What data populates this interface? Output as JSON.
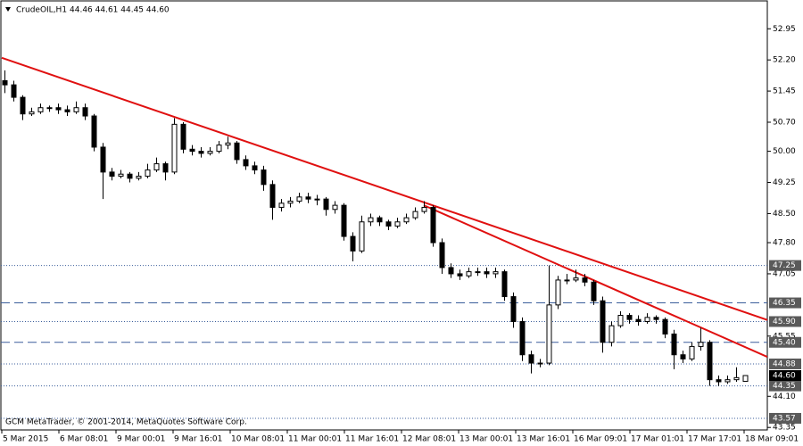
{
  "chart_data": {
    "type": "candlestick",
    "header": {
      "symbol": "CrudeOIL,H1",
      "ohlc": "44.46 44.61 44.45 44.60"
    },
    "footer": "GCM MetaTrader, © 2001-2014, MetaQuotes Software Corp.",
    "ylim": [
      43.29,
      53.6
    ],
    "yticks": [
      52.95,
      {
        "value": 52.2,
        "label": "52.20"
      },
      51.45,
      {
        "value": 50.7,
        "label": "50.70"
      },
      {
        "value": 50,
        "label": "50.00"
      },
      49.25,
      {
        "value": 48.5,
        "label": "48.50"
      },
      {
        "value": 47.8,
        "label": "47.80"
      },
      47.05,
      45.55,
      {
        "value": 44.1,
        "label": "44.10"
      },
      43.35
    ],
    "xlabels": [
      "5 Mar 2015",
      "6 Mar 08:01",
      "9 Mar 00:01",
      "9 Mar 16:01",
      "10 Mar 08:01",
      "11 Mar 00:01",
      "11 Mar 16:01",
      "12 Mar 08:01",
      "13 Mar 00:01",
      "13 Mar 16:01",
      "16 Mar 09:01",
      "17 Mar 01:01",
      "17 Mar 17:01",
      "18 Mar 09:01"
    ],
    "levels": [
      {
        "value": 47.25,
        "label": "47.25",
        "style": "dotted"
      },
      {
        "value": 46.35,
        "label": "46.35",
        "style": "dashed"
      },
      {
        "value": 45.9,
        "label": "45.90",
        "style": "dotted"
      },
      {
        "value": 45.4,
        "label": "45.40",
        "style": "dashed"
      },
      {
        "value": 44.88,
        "label": "44.88",
        "style": "dotted"
      },
      {
        "value": 44.35,
        "label": "44.35",
        "style": "dotted"
      },
      {
        "value": 43.57,
        "label": "43.57",
        "style": "dotted"
      }
    ],
    "level_color": "#3b5e9b",
    "current": {
      "value": 44.6,
      "label": "44.60"
    },
    "trendlines": [
      {
        "color": "#e01010",
        "from": [
          -0.3,
          52.25
        ],
        "to": [
          85.5,
          45.94
        ]
      },
      {
        "color": "#e01010",
        "from": [
          47,
          48.7
        ],
        "to": [
          85.5,
          45.05
        ]
      }
    ],
    "candles": [
      [
        51.7,
        51.95,
        51.4,
        51.6
      ],
      [
        51.6,
        51.7,
        51.2,
        51.3
      ],
      [
        51.3,
        51.35,
        50.75,
        50.9
      ],
      [
        50.9,
        51.05,
        50.85,
        50.95
      ],
      [
        50.95,
        51.15,
        50.9,
        51.05
      ],
      [
        51.05,
        51.1,
        50.95,
        51.05
      ],
      [
        51.05,
        51.15,
        50.9,
        51.0
      ],
      [
        51.0,
        51.1,
        50.85,
        50.95
      ],
      [
        50.95,
        51.2,
        50.9,
        51.05
      ],
      [
        51.05,
        51.15,
        50.75,
        50.85
      ],
      [
        50.85,
        50.9,
        50.0,
        50.1
      ],
      [
        50.1,
        50.2,
        48.85,
        49.5
      ],
      [
        49.5,
        49.6,
        49.3,
        49.4
      ],
      [
        49.4,
        49.55,
        49.35,
        49.45
      ],
      [
        49.45,
        49.5,
        49.25,
        49.35
      ],
      [
        49.35,
        49.5,
        49.3,
        49.4
      ],
      [
        49.4,
        49.7,
        49.35,
        49.55
      ],
      [
        49.55,
        49.85,
        49.5,
        49.7
      ],
      [
        49.7,
        49.75,
        49.3,
        49.5
      ],
      [
        49.5,
        50.8,
        49.45,
        50.65
      ],
      [
        50.65,
        50.7,
        49.95,
        50.05
      ],
      [
        50.05,
        50.15,
        49.9,
        50.0
      ],
      [
        50.0,
        50.1,
        49.85,
        49.95
      ],
      [
        49.95,
        50.1,
        49.9,
        50.0
      ],
      [
        50.0,
        50.25,
        49.95,
        50.15
      ],
      [
        50.15,
        50.35,
        50.05,
        50.2
      ],
      [
        50.2,
        50.25,
        49.7,
        49.8
      ],
      [
        49.8,
        49.9,
        49.55,
        49.65
      ],
      [
        49.65,
        49.75,
        49.45,
        49.55
      ],
      [
        49.55,
        49.65,
        49.05,
        49.2
      ],
      [
        49.2,
        49.3,
        48.35,
        48.65
      ],
      [
        48.65,
        48.85,
        48.55,
        48.75
      ],
      [
        48.75,
        48.9,
        48.65,
        48.8
      ],
      [
        48.8,
        49.0,
        48.75,
        48.9
      ],
      [
        48.9,
        49.0,
        48.75,
        48.85
      ],
      [
        48.85,
        48.95,
        48.7,
        48.85
      ],
      [
        48.85,
        48.9,
        48.45,
        48.6
      ],
      [
        48.6,
        48.8,
        48.5,
        48.7
      ],
      [
        48.7,
        48.75,
        47.85,
        47.95
      ],
      [
        47.95,
        48.05,
        47.35,
        47.6
      ],
      [
        47.6,
        48.45,
        47.55,
        48.3
      ],
      [
        48.3,
        48.5,
        48.2,
        48.4
      ],
      [
        48.4,
        48.45,
        48.2,
        48.3
      ],
      [
        48.3,
        48.35,
        48.1,
        48.2
      ],
      [
        48.2,
        48.4,
        48.15,
        48.3
      ],
      [
        48.3,
        48.5,
        48.25,
        48.4
      ],
      [
        48.4,
        48.65,
        48.35,
        48.55
      ],
      [
        48.55,
        48.8,
        48.5,
        48.65
      ],
      [
        48.65,
        48.7,
        47.7,
        47.8
      ],
      [
        47.8,
        47.9,
        47.05,
        47.2
      ],
      [
        47.2,
        47.3,
        46.95,
        47.05
      ],
      [
        47.05,
        47.15,
        46.9,
        47.0
      ],
      [
        47.0,
        47.2,
        46.95,
        47.1
      ],
      [
        47.1,
        47.2,
        47.0,
        47.1
      ],
      [
        47.1,
        47.2,
        46.95,
        47.05
      ],
      [
        47.05,
        47.2,
        46.95,
        47.1
      ],
      [
        47.1,
        47.15,
        46.4,
        46.5
      ],
      [
        46.5,
        46.6,
        45.75,
        45.9
      ],
      [
        45.9,
        46.0,
        44.95,
        45.1
      ],
      [
        45.1,
        45.2,
        44.65,
        44.9
      ],
      [
        44.9,
        45.0,
        44.8,
        44.9
      ],
      [
        44.9,
        47.25,
        44.85,
        46.3
      ],
      [
        46.3,
        47.0,
        46.2,
        46.9
      ],
      [
        46.9,
        47.05,
        46.8,
        46.9
      ],
      [
        46.9,
        47.15,
        46.85,
        46.95
      ],
      [
        46.95,
        47.05,
        46.75,
        46.85
      ],
      [
        46.85,
        46.9,
        46.3,
        46.4
      ],
      [
        46.4,
        46.5,
        45.15,
        45.4
      ],
      [
        45.4,
        45.9,
        45.3,
        45.8
      ],
      [
        45.8,
        46.15,
        45.75,
        46.05
      ],
      [
        46.05,
        46.1,
        45.85,
        45.95
      ],
      [
        45.95,
        46.05,
        45.8,
        45.9
      ],
      [
        45.9,
        46.1,
        45.85,
        46.0
      ],
      [
        46.0,
        46.05,
        45.85,
        45.95
      ],
      [
        45.95,
        46.0,
        45.5,
        45.6
      ],
      [
        45.6,
        45.7,
        44.75,
        45.1
      ],
      [
        45.1,
        45.2,
        44.9,
        45.0
      ],
      [
        45.0,
        45.4,
        44.95,
        45.3
      ],
      [
        45.3,
        45.75,
        45.2,
        45.4
      ],
      [
        45.4,
        45.45,
        44.35,
        44.5
      ],
      [
        44.5,
        44.6,
        44.35,
        44.45
      ],
      [
        44.45,
        44.6,
        44.4,
        44.5
      ],
      [
        44.5,
        44.8,
        44.45,
        44.55
      ],
      [
        44.46,
        44.61,
        44.45,
        44.6
      ]
    ]
  }
}
